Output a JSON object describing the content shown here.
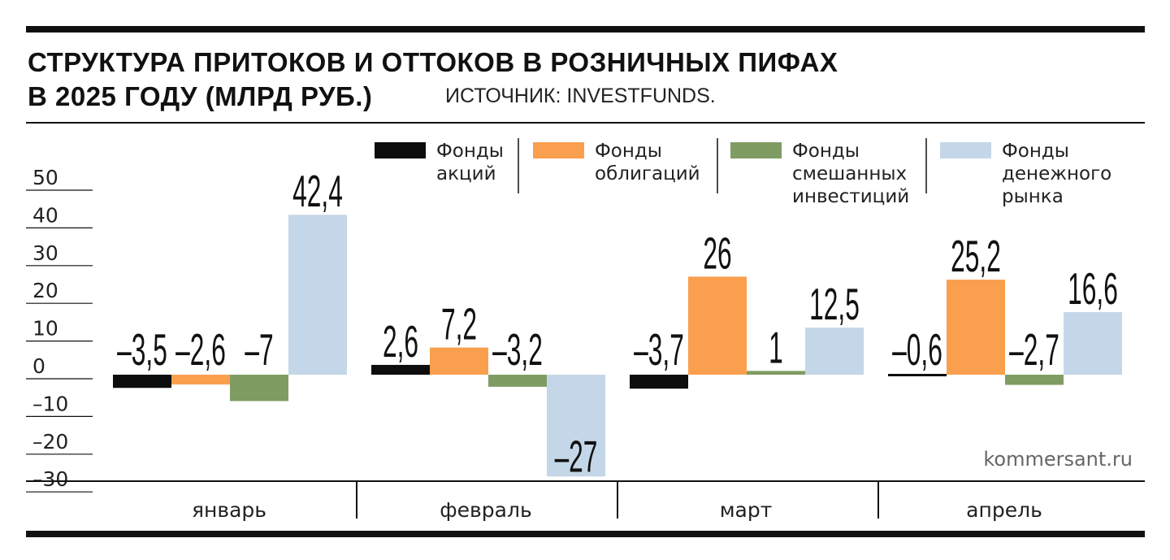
{
  "header": {
    "title_line1": "СТРУКТУРА ПРИТОКОВ И ОТТОКОВ В РОЗНИЧНЫХ ПИФАХ",
    "title_line2": "В 2025 ГОДУ (МЛРД РУБ.)",
    "source": "ИСТОЧНИК: INVESTFUNDS."
  },
  "watermark": "kommersant.ru",
  "colors": {
    "stocks": "#0d0d0d",
    "bonds": "#f99f4e",
    "mixed": "#7f9c63",
    "money_market": "#c4d7e8"
  },
  "chart_data": {
    "type": "bar",
    "categories": [
      "январь",
      "февраль",
      "март",
      "апрель"
    ],
    "series": [
      {
        "name": "Фонды акций",
        "name_lines": [
          "Фонды",
          "акций"
        ],
        "color_key": "stocks",
        "values": [
          -3.5,
          2.6,
          -3.7,
          -0.6
        ],
        "labels": [
          "–3,5",
          "2,6",
          "–3,7",
          "–0,6"
        ]
      },
      {
        "name": "Фонды облигаций",
        "name_lines": [
          "Фонды",
          "облигаций"
        ],
        "color_key": "bonds",
        "values": [
          -2.6,
          7.2,
          26,
          25.2
        ],
        "labels": [
          "–2,6",
          "7,2",
          "26",
          "25,2"
        ]
      },
      {
        "name": "Фонды смешанных инвестиций",
        "name_lines": [
          "Фонды",
          "смешанных",
          "инвестиций"
        ],
        "color_key": "mixed",
        "values": [
          -7,
          -3.2,
          1,
          -2.7
        ],
        "labels": [
          "–7",
          "–3,2",
          "1",
          "–2,7"
        ]
      },
      {
        "name": "Фонды денежного рынка",
        "name_lines": [
          "Фонды",
          "денежного",
          "рынка"
        ],
        "color_key": "money_market",
        "values": [
          42.4,
          -27,
          12.5,
          16.6
        ],
        "labels": [
          "42,4",
          "–27",
          "12,5",
          "16,6"
        ]
      }
    ],
    "yticks": [
      50,
      40,
      30,
      20,
      10,
      0,
      -10,
      -20,
      -30
    ],
    "ytick_labels": [
      "50",
      "40",
      "30",
      "20",
      "10",
      "0",
      "–10",
      "–20",
      "–30"
    ],
    "ylim": [
      -30,
      50
    ],
    "legend_position": "top",
    "grid": false
  }
}
